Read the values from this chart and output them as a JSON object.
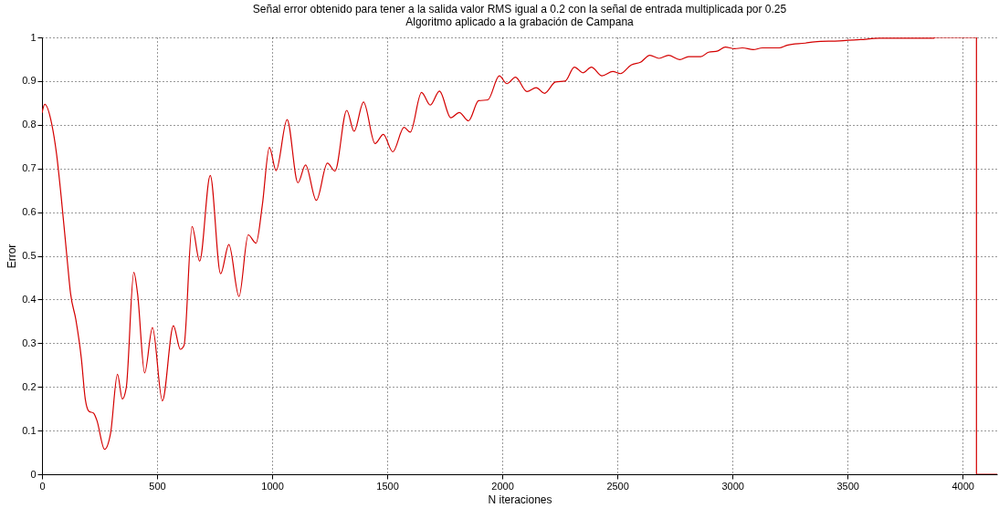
{
  "chart_data": {
    "type": "line",
    "title": "Señal error obtenido para tener a la salida valor RMS igual a 0.2 con la señal de entrada multiplicada por 0.25",
    "subtitle": "Algoritmo aplicado a la grabación de Campana",
    "xlabel": "N iteraciones",
    "ylabel": "Error",
    "series": [
      {
        "color": "#d40000",
        "x": [
          0,
          12,
          43,
          63,
          83,
          110,
          124,
          147,
          171,
          188,
          204,
          224,
          238,
          272,
          298,
          328,
          349,
          366,
          399,
          415,
          446,
          480,
          523,
          571,
          601,
          617,
          652,
          685,
          731,
          776,
          812,
          856,
          896,
          930,
          957,
          988,
          1017,
          1065,
          1112,
          1145,
          1192,
          1240,
          1273,
          1324,
          1356,
          1397,
          1447,
          1483,
          1524,
          1573,
          1600,
          1649,
          1687,
          1727,
          1776,
          1813,
          1853,
          1897,
          1937,
          1987,
          2020,
          2057,
          2107,
          2147,
          2183,
          2231,
          2273,
          2313,
          2351,
          2387,
          2433,
          2480,
          2513,
          2560,
          2600,
          2641,
          2681,
          2722,
          2771,
          2809,
          2862,
          2896,
          2936,
          2969,
          3009,
          3043,
          3090,
          3130,
          3203,
          3237,
          3317,
          3357,
          3464,
          3558,
          3638,
          3873,
          3880,
          3993,
          4060,
          4060,
          4150
        ],
        "values": [
          0.827,
          0.847,
          0.8,
          0.734,
          0.637,
          0.488,
          0.414,
          0.354,
          0.265,
          0.172,
          0.144,
          0.14,
          0.124,
          0.057,
          0.094,
          0.229,
          0.172,
          0.198,
          0.462,
          0.414,
          0.232,
          0.336,
          0.168,
          0.34,
          0.286,
          0.295,
          0.567,
          0.488,
          0.684,
          0.459,
          0.526,
          0.407,
          0.548,
          0.529,
          0.615,
          0.748,
          0.695,
          0.812,
          0.667,
          0.708,
          0.627,
          0.712,
          0.694,
          0.833,
          0.785,
          0.852,
          0.757,
          0.778,
          0.738,
          0.794,
          0.783,
          0.874,
          0.845,
          0.877,
          0.816,
          0.828,
          0.809,
          0.855,
          0.857,
          0.912,
          0.894,
          0.909,
          0.876,
          0.885,
          0.872,
          0.898,
          0.9,
          0.932,
          0.919,
          0.932,
          0.912,
          0.922,
          0.917,
          0.937,
          0.943,
          0.959,
          0.952,
          0.959,
          0.949,
          0.956,
          0.956,
          0.966,
          0.969,
          0.978,
          0.974,
          0.976,
          0.972,
          0.976,
          0.976,
          0.982,
          0.987,
          0.99,
          0.992,
          0.995,
          0.998,
          0.998,
          1.0,
          1.0,
          1.0,
          0,
          0
        ]
      }
    ],
    "xlim": [
      0,
      4150
    ],
    "xticks": [
      0,
      500,
      1000,
      1500,
      2000,
      2500,
      3000,
      3500,
      4000
    ],
    "ylim": [
      0,
      1
    ],
    "yticks": [
      0,
      0.1,
      0.2,
      0.3,
      0.4,
      0.5,
      0.6,
      0.7,
      0.8,
      0.9,
      1
    ],
    "grid": true,
    "line_style": "solid",
    "marker": "none"
  }
}
